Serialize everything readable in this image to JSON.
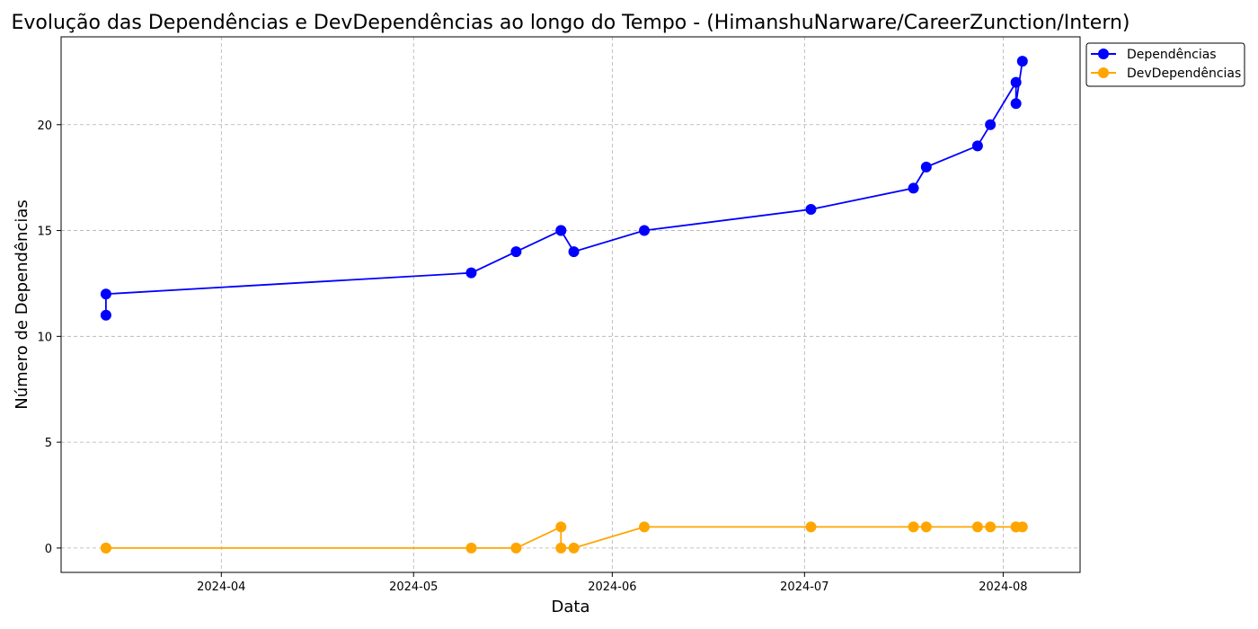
{
  "chart_data": {
    "type": "line",
    "title": "Evolução das Dependências e DevDependências ao longo do Tempo - (HimanshuNarware/CareerZunction/Intern)",
    "xlabel": "Data",
    "ylabel": "Número de Dependências",
    "x_tick_labels": [
      "2024-04",
      "2024-05",
      "2024-06",
      "2024-07",
      "2024-08"
    ],
    "x_tick_dates": [
      "2024-04-01",
      "2024-05-01",
      "2024-06-01",
      "2024-07-01",
      "2024-08-01"
    ],
    "xlim": [
      "2024-03-07",
      "2024-08-13"
    ],
    "ylim": [
      -1.15,
      24.15
    ],
    "y_ticks": [
      0,
      5,
      10,
      15,
      20
    ],
    "grid": true,
    "legend_position": "outside-top-right",
    "series": [
      {
        "name": "Dependências",
        "color": "#0000ff",
        "points": [
          [
            "2024-03-14",
            11
          ],
          [
            "2024-03-14",
            12
          ],
          [
            "2024-05-10",
            13
          ],
          [
            "2024-05-17",
            14
          ],
          [
            "2024-05-24",
            15
          ],
          [
            "2024-05-24",
            15
          ],
          [
            "2024-05-26",
            14
          ],
          [
            "2024-06-06",
            15
          ],
          [
            "2024-07-02",
            16
          ],
          [
            "2024-07-18",
            17
          ],
          [
            "2024-07-20",
            18
          ],
          [
            "2024-07-28",
            19
          ],
          [
            "2024-07-30",
            20
          ],
          [
            "2024-08-03",
            22
          ],
          [
            "2024-08-03",
            21
          ],
          [
            "2024-08-04",
            23
          ]
        ]
      },
      {
        "name": "DevDependências",
        "color": "#ffa500",
        "points": [
          [
            "2024-03-14",
            0
          ],
          [
            "2024-03-14",
            0
          ],
          [
            "2024-05-10",
            0
          ],
          [
            "2024-05-17",
            0
          ],
          [
            "2024-05-24",
            1
          ],
          [
            "2024-05-24",
            0
          ],
          [
            "2024-05-26",
            0
          ],
          [
            "2024-06-06",
            1
          ],
          [
            "2024-07-02",
            1
          ],
          [
            "2024-07-18",
            1
          ],
          [
            "2024-07-20",
            1
          ],
          [
            "2024-07-28",
            1
          ],
          [
            "2024-07-30",
            1
          ],
          [
            "2024-08-03",
            1
          ],
          [
            "2024-08-03",
            1
          ],
          [
            "2024-08-04",
            1
          ]
        ]
      }
    ]
  }
}
